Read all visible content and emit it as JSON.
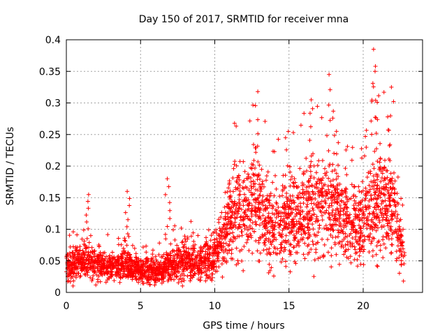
{
  "chart_data": {
    "type": "scatter",
    "title": "Day 150 of 2017, SRMTID for receiver mna",
    "xlabel": "GPS time / hours",
    "ylabel": "SRMTID / TECUs",
    "xlim": [
      0,
      24
    ],
    "ylim": [
      0,
      0.4
    ],
    "xticks": [
      0,
      5,
      10,
      15,
      20
    ],
    "xtick_labels": [
      "0",
      "5",
      "10",
      "15",
      "20"
    ],
    "yticks": [
      0,
      0.05,
      0.1,
      0.15,
      0.2,
      0.25,
      0.3,
      0.35,
      0.4
    ],
    "ytick_labels": [
      "0",
      "0.05",
      "0.1",
      "0.15",
      "0.2",
      "0.25",
      "0.3",
      "0.35",
      "0.4"
    ],
    "grid": true,
    "marker": "+",
    "color": "#ff0000",
    "data_extent_hours": [
      0,
      22.8
    ],
    "series": [
      {
        "name": "SRMTID",
        "profile": [
          {
            "x": 0.0,
            "mean": 0.04
          },
          {
            "x": 1.0,
            "mean": 0.048
          },
          {
            "x": 2.0,
            "mean": 0.045
          },
          {
            "x": 3.0,
            "mean": 0.04
          },
          {
            "x": 4.0,
            "mean": 0.045
          },
          {
            "x": 5.0,
            "mean": 0.035
          },
          {
            "x": 6.0,
            "mean": 0.03
          },
          {
            "x": 7.0,
            "mean": 0.045
          },
          {
            "x": 8.0,
            "mean": 0.05
          },
          {
            "x": 9.0,
            "mean": 0.048
          },
          {
            "x": 10.0,
            "mean": 0.06
          },
          {
            "x": 11.0,
            "mean": 0.12
          },
          {
            "x": 12.0,
            "mean": 0.13
          },
          {
            "x": 13.0,
            "mean": 0.13
          },
          {
            "x": 14.0,
            "mean": 0.1
          },
          {
            "x": 15.0,
            "mean": 0.12
          },
          {
            "x": 16.0,
            "mean": 0.13
          },
          {
            "x": 17.0,
            "mean": 0.13
          },
          {
            "x": 18.0,
            "mean": 0.13
          },
          {
            "x": 19.0,
            "mean": 0.11
          },
          {
            "x": 20.0,
            "mean": 0.11
          },
          {
            "x": 21.0,
            "mean": 0.15
          },
          {
            "x": 22.0,
            "mean": 0.13
          },
          {
            "x": 22.8,
            "mean": 0.05
          }
        ],
        "peaks": [
          {
            "x": 1.5,
            "y": 0.155
          },
          {
            "x": 4.1,
            "y": 0.16
          },
          {
            "x": 6.8,
            "y": 0.18
          },
          {
            "x": 12.9,
            "y": 0.318
          },
          {
            "x": 16.5,
            "y": 0.305
          },
          {
            "x": 17.7,
            "y": 0.345
          },
          {
            "x": 18.2,
            "y": 0.255
          },
          {
            "x": 20.7,
            "y": 0.385
          },
          {
            "x": 20.8,
            "y": 0.35
          },
          {
            "x": 21.9,
            "y": 0.325
          }
        ]
      }
    ]
  }
}
